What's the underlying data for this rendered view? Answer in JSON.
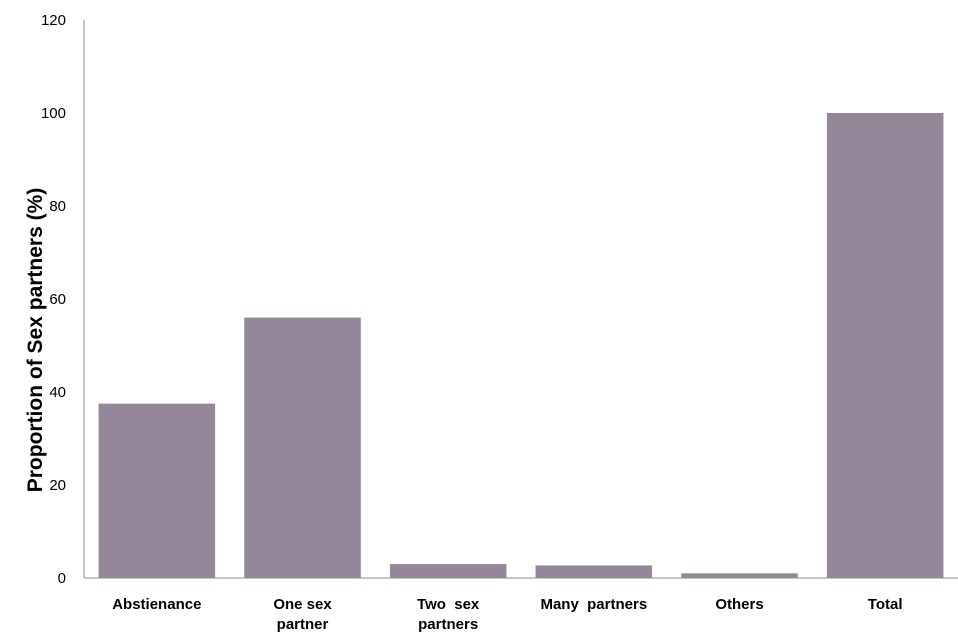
{
  "chart_data": {
    "type": "bar",
    "title": "",
    "xlabel": "",
    "ylabel": "Proportion of Sex partners (%)",
    "ylim": [
      0,
      120
    ],
    "yticks": [
      0,
      20,
      40,
      60,
      80,
      100,
      120
    ],
    "grid": false,
    "legend": "none",
    "bar_color": "#938799",
    "axis_color": "#8c8c8c",
    "categories": [
      [
        "Abstienance"
      ],
      [
        "One sex",
        "partner"
      ],
      [
        "Two  sex",
        "partners"
      ],
      [
        "Many  partners"
      ],
      [
        "Others"
      ],
      [
        "Total"
      ]
    ],
    "values": [
      37.5,
      56,
      3,
      2.7,
      1,
      100
    ]
  }
}
